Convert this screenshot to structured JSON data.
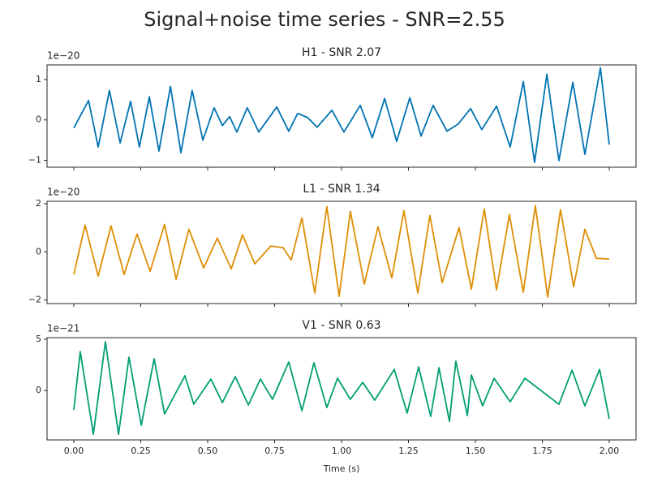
{
  "title": "Signal+noise time series - SNR=2.55",
  "chart_data": [
    {
      "type": "line",
      "title": "H1 - SNR 2.07",
      "offset_label": "1e−20",
      "color": "#0173b2",
      "xlim": [
        -0.1,
        2.1
      ],
      "xticks": [
        0,
        0.25,
        0.5,
        0.75,
        1,
        1.25,
        1.5,
        1.75,
        2
      ],
      "ylim": [
        -1.17,
        1.36
      ],
      "yticks": [
        {
          "value": -1,
          "label": "−1"
        },
        0,
        1
      ],
      "x": [
        0,
        0.055,
        0.091,
        0.133,
        0.173,
        0.212,
        0.245,
        0.282,
        0.318,
        0.361,
        0.4,
        0.442,
        0.482,
        0.524,
        0.555,
        0.582,
        0.609,
        0.648,
        0.691,
        0.758,
        0.803,
        0.836,
        0.873,
        0.909,
        0.964,
        1.009,
        1.07,
        1.115,
        1.161,
        1.206,
        1.255,
        1.297,
        1.342,
        1.394,
        1.436,
        1.482,
        1.524,
        1.579,
        1.63,
        1.679,
        1.721,
        1.767,
        1.812,
        1.864,
        1.909,
        1.967,
        2
      ],
      "values": [
        -0.2,
        0.48,
        -0.67,
        0.73,
        -0.57,
        0.46,
        -0.67,
        0.57,
        -0.77,
        0.83,
        -0.81,
        0.73,
        -0.5,
        0.3,
        -0.14,
        0.08,
        -0.3,
        0.3,
        -0.3,
        0.32,
        -0.28,
        0.16,
        0.06,
        -0.18,
        0.24,
        -0.3,
        0.36,
        -0.44,
        0.53,
        -0.53,
        0.55,
        -0.4,
        0.36,
        -0.28,
        -0.1,
        0.28,
        -0.24,
        0.34,
        -0.67,
        0.95,
        -1.05,
        1.13,
        -1.01,
        0.93,
        -0.85,
        1.29,
        -0.61
      ]
    },
    {
      "type": "line",
      "title": "L1 - SNR 1.34",
      "offset_label": "1e−20",
      "color": "#de8f05",
      "xlim": [
        -0.1,
        2.1
      ],
      "xticks": [
        0,
        0.25,
        0.5,
        0.75,
        1,
        1.25,
        1.5,
        1.75,
        2
      ],
      "ylim": [
        -2.15,
        2.1
      ],
      "yticks": [
        {
          "value": -2,
          "label": "−2"
        },
        0,
        2
      ],
      "x": [
        0,
        0.042,
        0.091,
        0.139,
        0.188,
        0.236,
        0.285,
        0.339,
        0.382,
        0.43,
        0.485,
        0.536,
        0.588,
        0.63,
        0.676,
        0.736,
        0.782,
        0.812,
        0.852,
        0.9,
        0.945,
        0.991,
        1.033,
        1.085,
        1.136,
        1.188,
        1.233,
        1.285,
        1.33,
        1.376,
        1.439,
        1.485,
        1.533,
        1.579,
        1.627,
        1.679,
        1.724,
        1.77,
        1.818,
        1.867,
        1.909,
        1.952,
        2
      ],
      "values": [
        -0.94,
        1.11,
        -1.01,
        1.08,
        -0.94,
        0.74,
        -0.81,
        1.14,
        -1.14,
        0.94,
        -0.67,
        0.57,
        -0.71,
        0.71,
        -0.5,
        0.24,
        0.17,
        -0.34,
        1.41,
        -1.71,
        1.88,
        -1.85,
        1.68,
        -1.34,
        1.04,
        -1.08,
        1.71,
        -1.71,
        1.51,
        -1.28,
        1.01,
        -1.55,
        1.78,
        -1.58,
        1.55,
        -1.68,
        1.92,
        -1.88,
        1.75,
        -1.45,
        0.94,
        -0.27,
        -0.3
      ]
    },
    {
      "type": "line",
      "title": "V1 - SNR 0.63",
      "offset_label": "1e−21",
      "color": "#029e73",
      "xlabel": "Time (s)",
      "xlim": [
        -0.1,
        2.1
      ],
      "xticks": [
        {
          "value": 0,
          "label": "0.00"
        },
        {
          "value": 0.25,
          "label": "0.25"
        },
        {
          "value": 0.5,
          "label": "0.50"
        },
        {
          "value": 0.75,
          "label": "0.75"
        },
        {
          "value": 1,
          "label": "1.00"
        },
        {
          "value": 1.25,
          "label": "1.25"
        },
        {
          "value": 1.5,
          "label": "1.50"
        },
        {
          "value": 1.75,
          "label": "1.75"
        },
        {
          "value": 2,
          "label": "2.00"
        }
      ],
      "ylim": [
        -4.84,
        5.16
      ],
      "yticks": [
        0,
        5
      ],
      "x": [
        0,
        0.024,
        0.073,
        0.118,
        0.167,
        0.206,
        0.252,
        0.3,
        0.339,
        0.415,
        0.448,
        0.512,
        0.555,
        0.603,
        0.652,
        0.697,
        0.742,
        0.803,
        0.852,
        0.897,
        0.945,
        0.985,
        1.033,
        1.079,
        1.124,
        1.197,
        1.245,
        1.288,
        1.333,
        1.364,
        1.403,
        1.427,
        1.47,
        1.485,
        1.527,
        1.57,
        1.63,
        1.685,
        1.812,
        1.861,
        1.909,
        1.964,
        2
      ],
      "values": [
        -1.9,
        3.8,
        -4.29,
        4.76,
        -4.29,
        3.25,
        -3.41,
        3.1,
        -2.3,
        1.43,
        -1.35,
        1.11,
        -1.19,
        1.35,
        -1.43,
        1.11,
        -0.87,
        2.78,
        -1.98,
        2.7,
        -1.67,
        1.19,
        -0.87,
        0.79,
        -0.95,
        2.06,
        -2.22,
        2.3,
        -2.54,
        2.22,
        -3.02,
        2.86,
        -2.46,
        1.51,
        -1.51,
        1.19,
        -1.11,
        1.19,
        -1.35,
        1.98,
        -1.51,
        2.06,
        -2.78
      ]
    }
  ]
}
